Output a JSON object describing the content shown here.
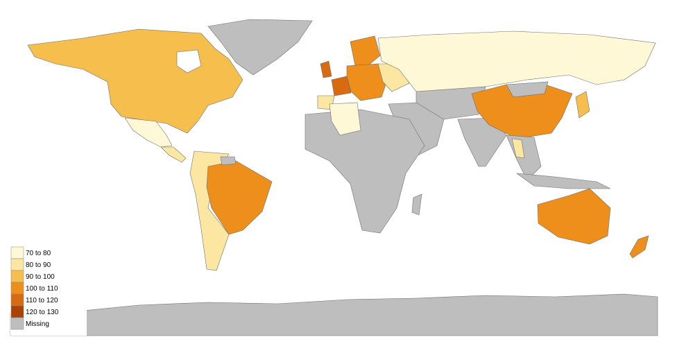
{
  "legend": {
    "items": [
      {
        "label": "70 to 80",
        "color": "#fff8d6"
      },
      {
        "label": "80 to 90",
        "color": "#fbe7a1"
      },
      {
        "label": "90 to 100",
        "color": "#f6be4c"
      },
      {
        "label": "100 to 110",
        "color": "#ee8e1b"
      },
      {
        "label": "110 to 120",
        "color": "#d96a10"
      },
      {
        "label": "120 to 130",
        "color": "#a84305"
      },
      {
        "label": "Missing",
        "color": "#bebebe"
      }
    ]
  }
}
